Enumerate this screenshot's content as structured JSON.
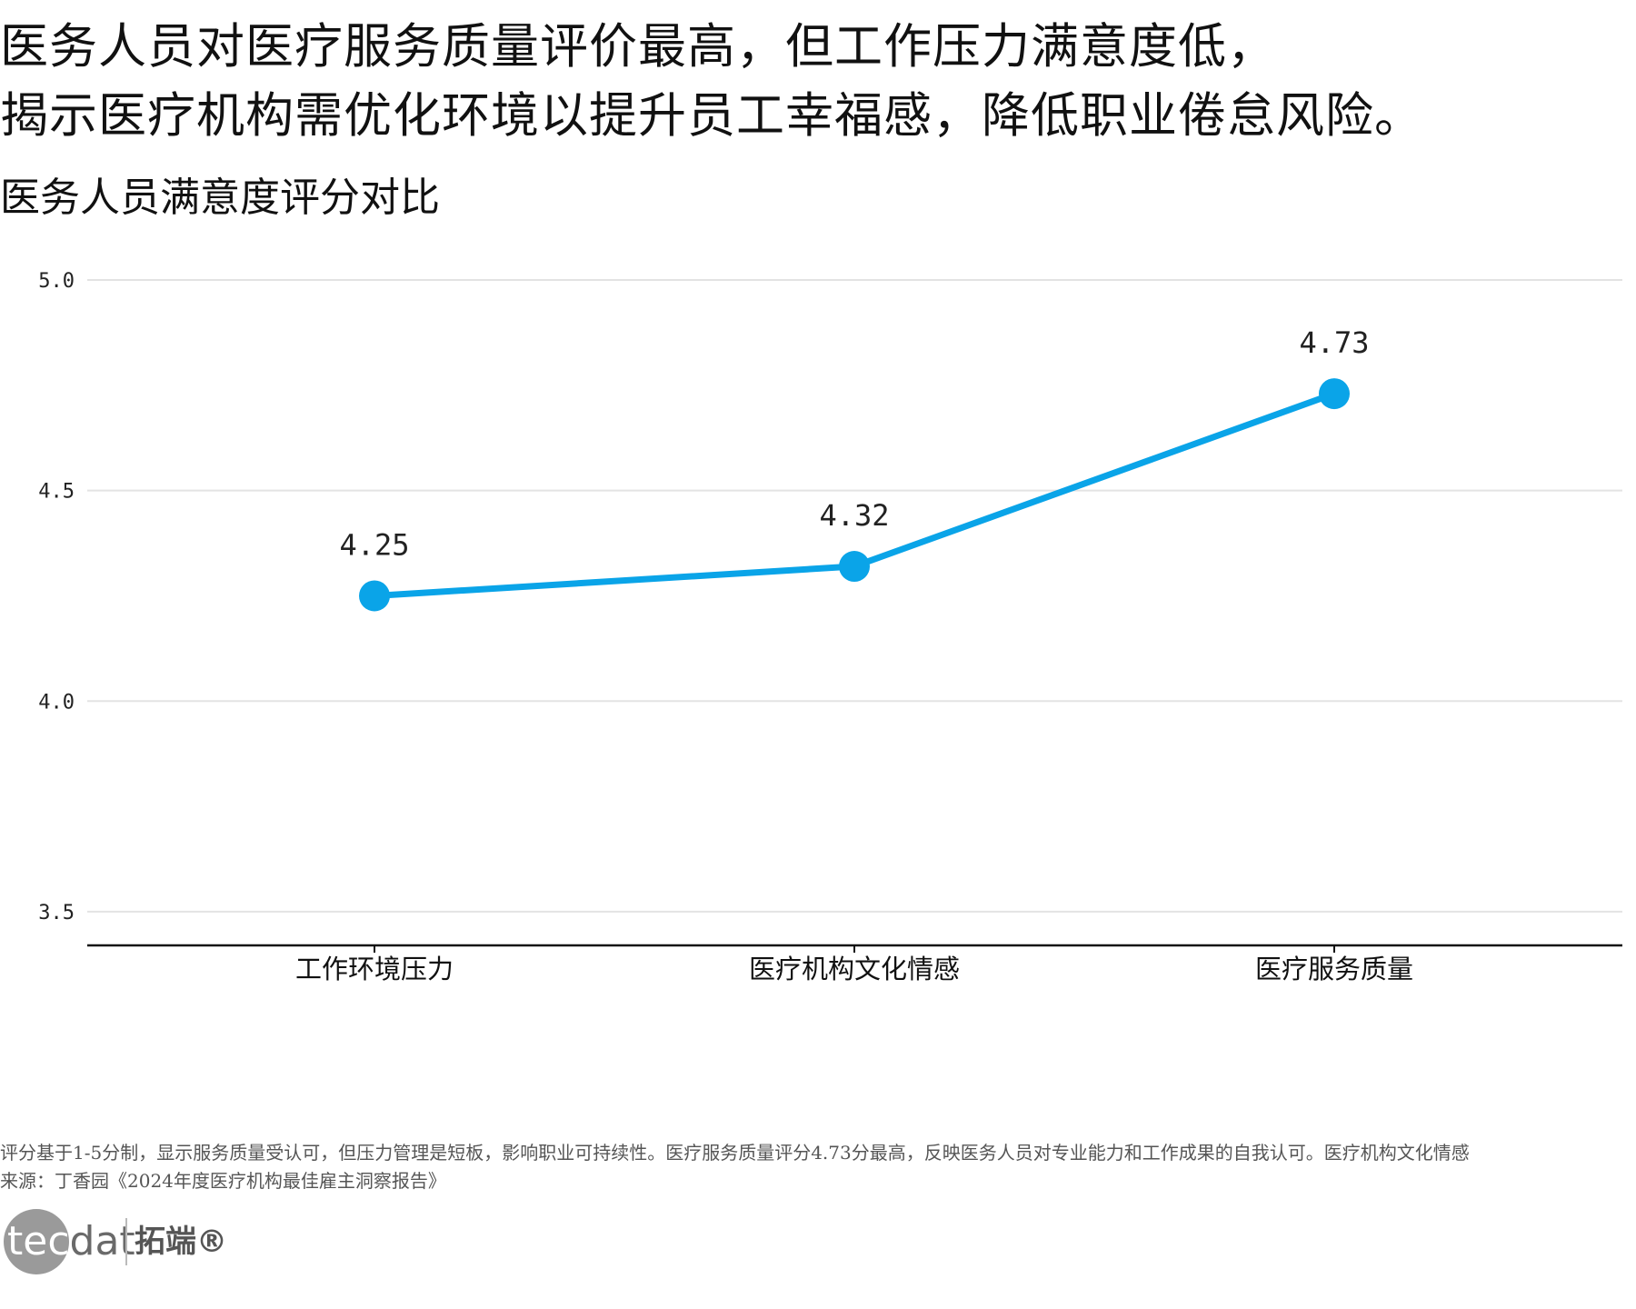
{
  "headline": {
    "line1": "医务人员对医疗服务质量评价最高，但工作压力满意度低，",
    "line2": "揭示医疗机构需优化环境以提升员工幸福感，降低职业倦怠风险。"
  },
  "subtitle": "医务人员满意度评分对比",
  "chart_data": {
    "type": "line",
    "title": "",
    "xlabel": "",
    "ylabel": "",
    "categories": [
      "工作环境压力",
      "医疗机构文化情感",
      "医疗服务质量"
    ],
    "values": [
      4.25,
      4.32,
      4.73
    ],
    "data_labels": [
      "4.25",
      "4.32",
      "4.73"
    ],
    "ylim": [
      3.42,
      5.0
    ],
    "yticks": [
      3.5,
      4.0,
      4.5,
      5.0
    ],
    "ytick_labels": [
      "3.5",
      "4.0",
      "4.5",
      "5.0"
    ],
    "grid": true,
    "line_color": "#0aa4e8",
    "grid_color": "#e3e3e3",
    "axis_color": "#111111"
  },
  "footnote": "评分基于1-5分制，显示服务质量受认可，但压力管理是短板，影响职业可持续性。医疗服务质量评分4.73分最高，反映医务人员对专业能力和工作成果的自我认可。医疗机构文化情感",
  "source": "来源：丁香园《2024年度医疗机构最佳雇主洞察报告》",
  "logo": {
    "word_tec": "tec",
    "word_dat": "dat",
    "cn": "拓端®"
  }
}
